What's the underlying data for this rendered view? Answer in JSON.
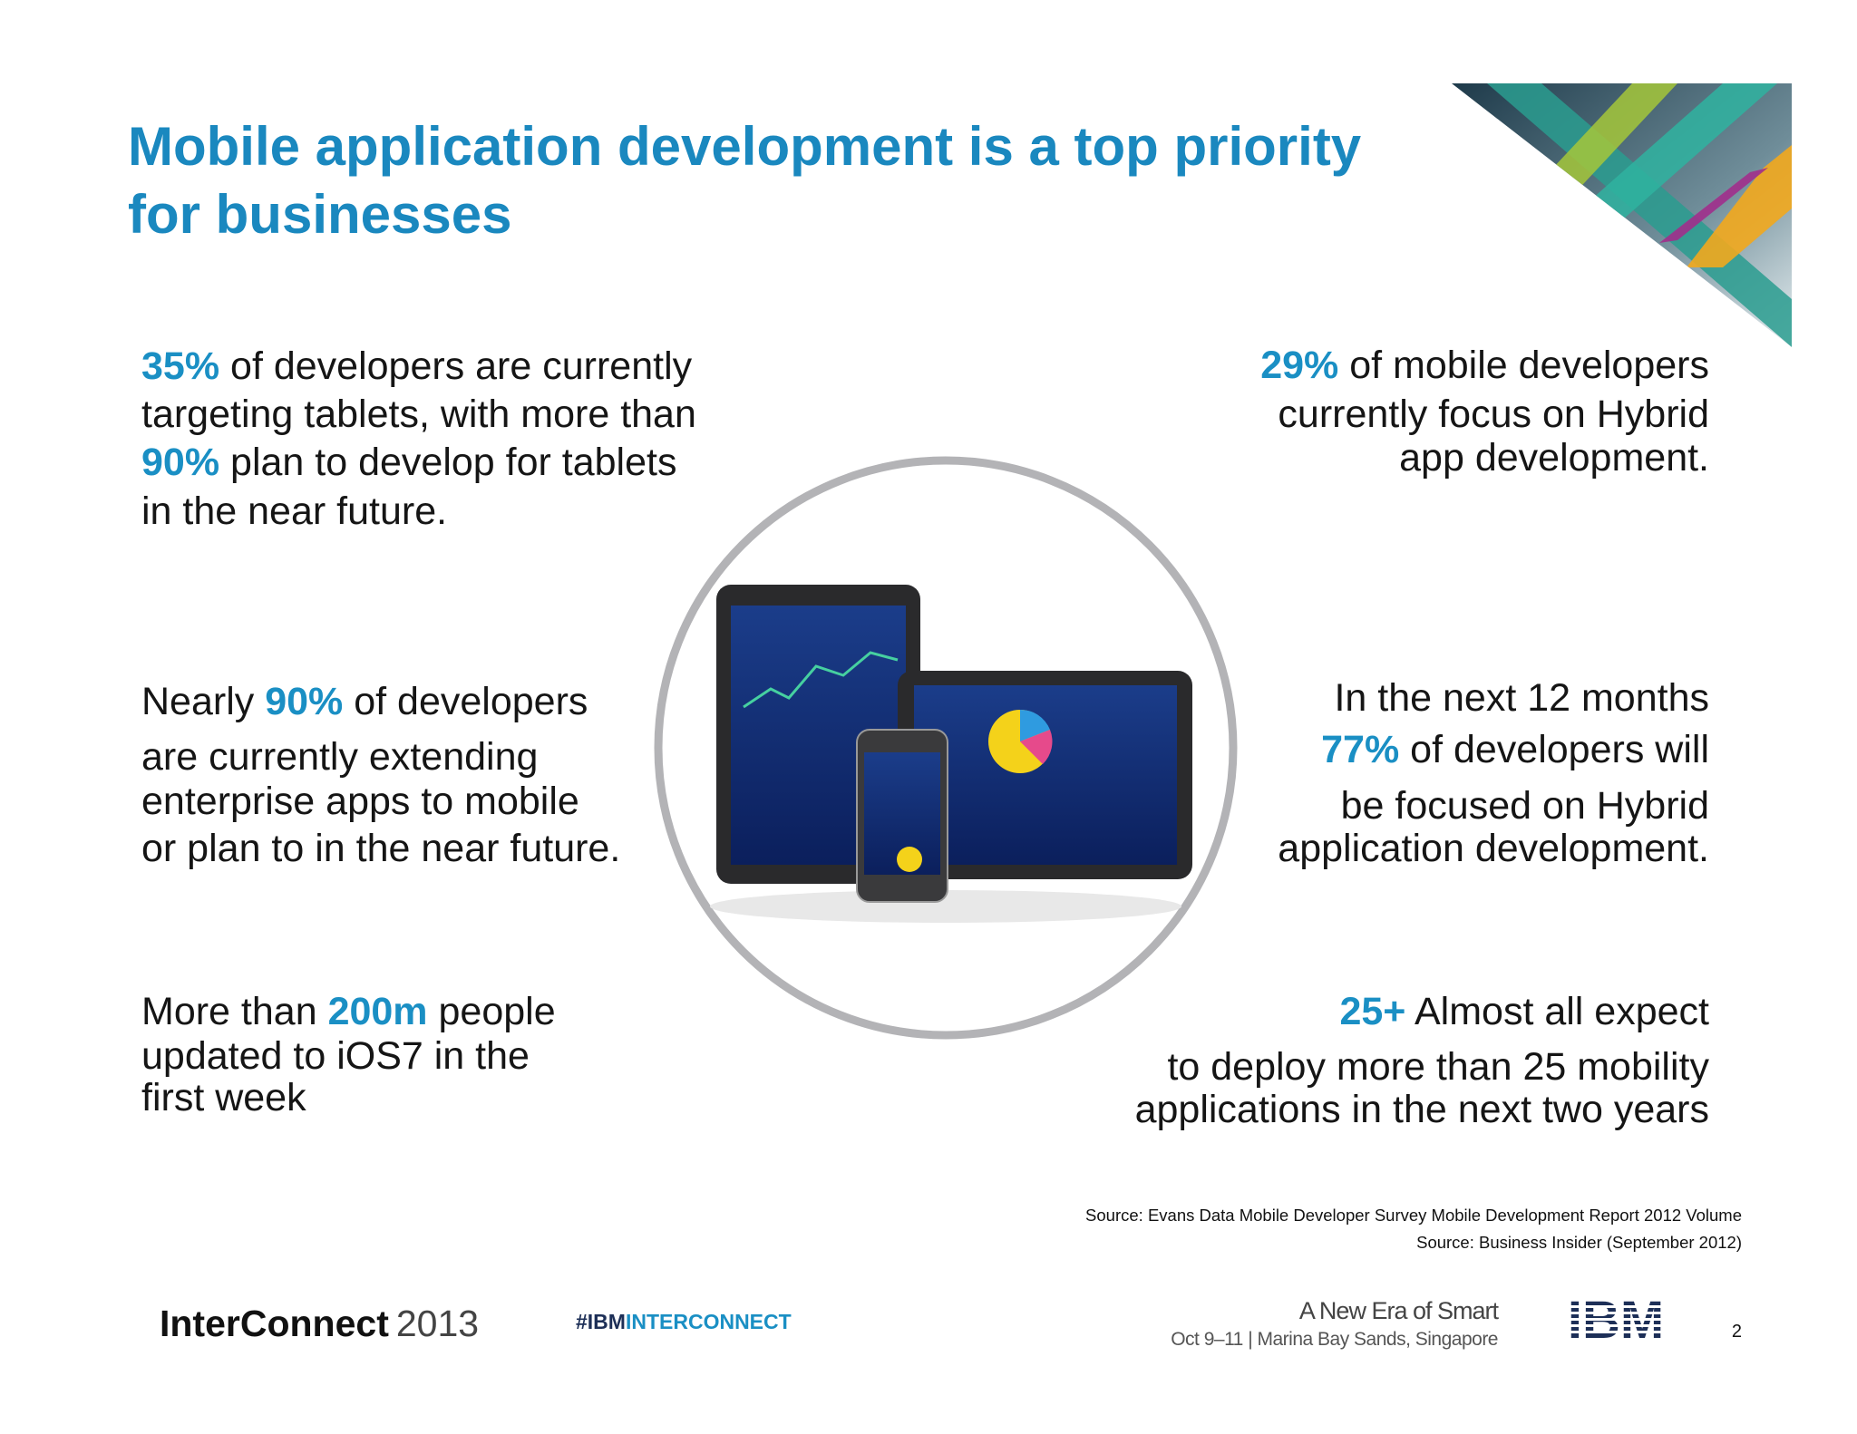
{
  "header": {
    "title_lines": [
      "Mobile application development is a top priority",
      "for businesses"
    ]
  },
  "blocks": [
    {
      "lines": [
        [
          {
            "text": "35%",
            "accent": true
          },
          " of developers are currently"
        ],
        [
          "targeting tablets, with more than"
        ],
        [
          {
            "text": "90%",
            "accent": true
          },
          " plan to develop for tablets"
        ],
        [
          "in the near future."
        ]
      ]
    },
    {
      "lines": [
        [
          "Nearly ",
          {
            "text": "90%",
            "accent": true
          },
          " of developers"
        ],
        [
          "are currently extending"
        ],
        [
          "enterprise apps to mobile"
        ],
        [
          "or plan to in the near future."
        ]
      ]
    },
    {
      "lines": [
        [
          "More than ",
          {
            "text": "200m",
            "accent": true
          },
          " people"
        ],
        [
          "updated to iOS7 in the"
        ],
        [
          "first week"
        ]
      ]
    },
    {
      "lines": [
        [
          {
            "text": "29%",
            "accent": true
          },
          " of mobile developers"
        ],
        [
          "currently focus on Hybrid"
        ],
        [
          "app development."
        ]
      ]
    },
    {
      "lines": [
        [
          "In the next 12 months"
        ],
        [
          {
            "text": "77%",
            "accent": true
          },
          " of developers will"
        ],
        [
          "be focused on Hybrid"
        ],
        [
          "application development."
        ]
      ]
    },
    {
      "lines": [
        [
          {
            "text": "25+",
            "accent": true
          },
          " Almost all expect"
        ],
        [
          "to deploy more than 25 mobility"
        ],
        [
          "applications in the next two years"
        ]
      ]
    }
  ],
  "sources": [
    "Source: Evans Data Mobile Developer Survey Mobile Development Report 2012 Volume",
    "Source: Business Insider (September 2012)"
  ],
  "footer": {
    "brand": "InterConnect",
    "year": "2013",
    "hashtag_prefix": "#IBM",
    "hashtag_rest": "INTERCONNECT",
    "tagline": "A New Era of Smart",
    "event": "Oct 9–11 | Marina Bay Sands, Singapore",
    "logo": "IBM",
    "page_number": "2"
  }
}
